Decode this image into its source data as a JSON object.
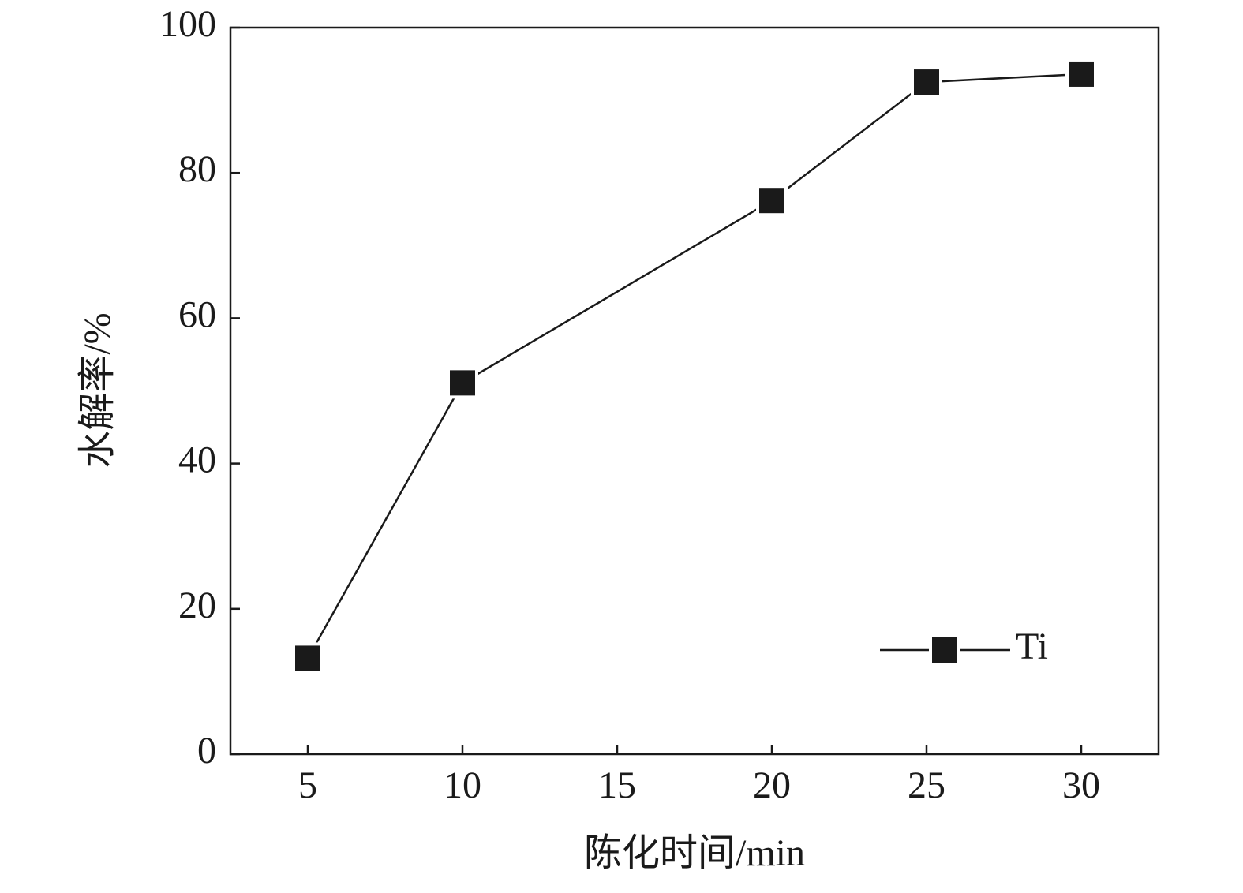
{
  "chart_data": {
    "type": "line",
    "x_label": "陈化时间/min",
    "y_label": "水解率/%",
    "x": [
      5,
      10,
      20,
      25,
      30
    ],
    "series": [
      {
        "name": "Ti",
        "color": "#1a1a1a",
        "values": [
          13.2,
          51.1,
          76.2,
          92.5,
          93.6
        ]
      }
    ],
    "xlim": [
      2.5,
      32.5
    ],
    "xticks": [
      5,
      10,
      15,
      20,
      25,
      30
    ],
    "ylim": [
      0,
      100
    ],
    "yticks": [
      0,
      20,
      40,
      60,
      80,
      100
    ],
    "grid": false,
    "legend": "lower right"
  }
}
